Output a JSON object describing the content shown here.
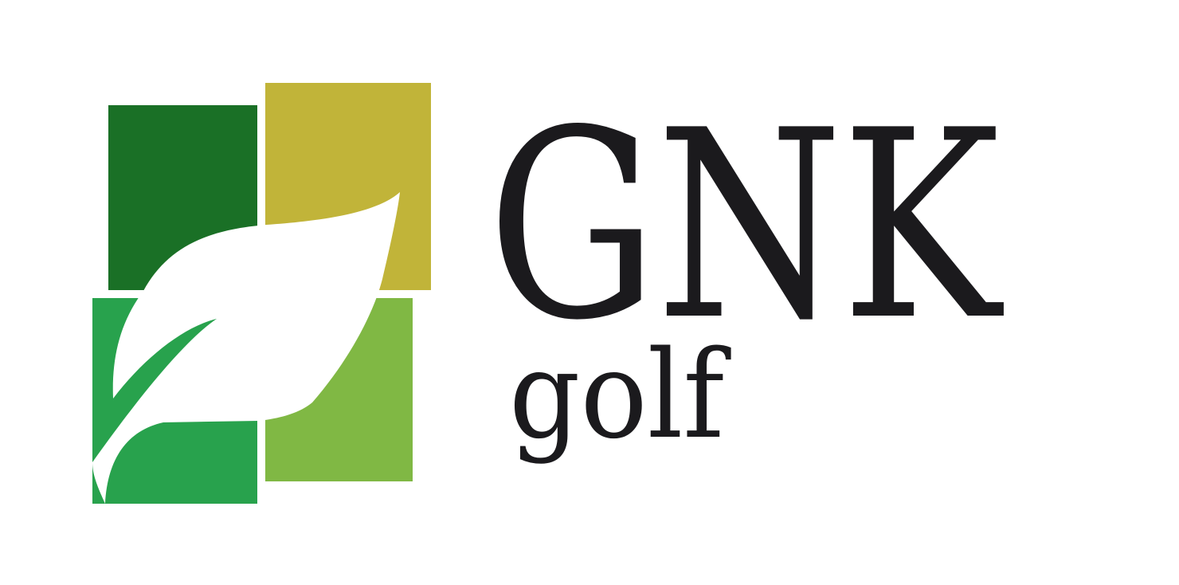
{
  "brand": {
    "name": "GNK",
    "tagline": "golf"
  },
  "colors": {
    "dark_green": "#1a7026",
    "olive": "#c1b439",
    "green": "#28a24d",
    "light_green": "#80b844",
    "leaf": "#ffffff",
    "text": "#1b1a1d"
  },
  "icons": {
    "mark": "leaf-squares-logo"
  }
}
